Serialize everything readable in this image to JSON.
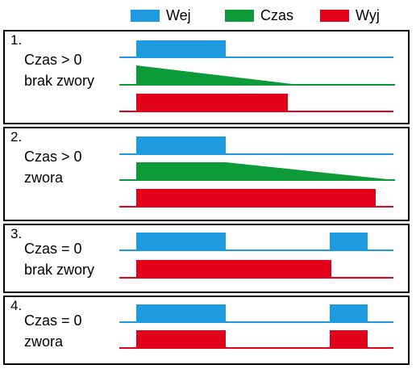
{
  "legend": [
    {
      "label": "Wej",
      "color": "#1e9be0"
    },
    {
      "label": "Czas",
      "color": "#0d9a39"
    },
    {
      "label": "Wyj",
      "color": "#e3001b"
    }
  ],
  "panels": [
    {
      "number": "1.",
      "line1": "Czas > 0",
      "line2": "brak zwory"
    },
    {
      "number": "2.",
      "line1": "Czas > 0",
      "line2": "zwora"
    },
    {
      "number": "3.",
      "line1": "Czas = 0",
      "line2": "brak zwory"
    },
    {
      "number": "4.",
      "line1": "Czas = 0",
      "line2": "zwora"
    }
  ],
  "colors": {
    "input": "#1e9be0",
    "timer": "#0d9a39",
    "output": "#e3001b",
    "border": "#000000"
  }
}
